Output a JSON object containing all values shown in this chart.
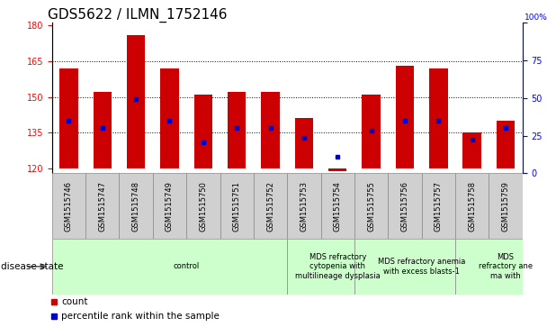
{
  "title": "GDS5622 / ILMN_1752146",
  "samples": [
    "GSM1515746",
    "GSM1515747",
    "GSM1515748",
    "GSM1515749",
    "GSM1515750",
    "GSM1515751",
    "GSM1515752",
    "GSM1515753",
    "GSM1515754",
    "GSM1515755",
    "GSM1515756",
    "GSM1515757",
    "GSM1515758",
    "GSM1515759"
  ],
  "bar_tops": [
    162,
    152,
    176,
    162,
    151,
    152,
    152,
    141,
    119,
    151,
    163,
    162,
    135,
    140
  ],
  "bar_bottoms": [
    120,
    120,
    120,
    120,
    120,
    120,
    120,
    120,
    120,
    120,
    120,
    120,
    120,
    120
  ],
  "percentile_values": [
    140,
    137,
    149,
    140,
    131,
    137,
    137,
    133,
    125,
    136,
    140,
    140,
    132,
    137
  ],
  "ylim_left": [
    118,
    181
  ],
  "ylim_right": [
    0,
    100
  ],
  "yticks_left": [
    120,
    135,
    150,
    165,
    180
  ],
  "yticks_right": [
    0,
    25,
    50,
    75,
    100
  ],
  "bar_color": "#cc0000",
  "percentile_color": "#0000cc",
  "bg_color": "#ffffff",
  "bar_width": 0.55,
  "group_labels": [
    "control",
    "MDS refractory\ncytopenia with\nmultilineage dysplasia",
    "MDS refractory anemia\nwith excess blasts-1",
    "MDS\nrefractory ane\nma with"
  ],
  "group_starts": [
    0,
    7,
    9,
    12
  ],
  "group_ends": [
    7,
    9,
    12,
    14
  ],
  "group_color": "#ccffcc",
  "sample_box_color": "#d0d0d0",
  "legend_count_color": "#cc0000",
  "legend_percentile_color": "#0000cc",
  "title_fontsize": 11,
  "tick_fontsize": 7,
  "sample_fontsize": 6,
  "group_fontsize": 6,
  "disease_label_fontsize": 7.5
}
